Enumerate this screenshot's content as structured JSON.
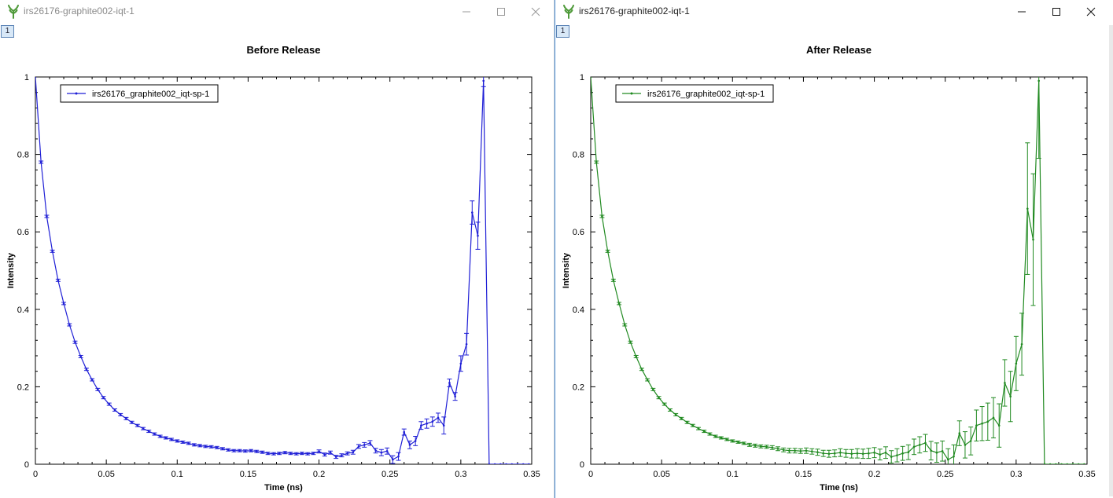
{
  "colors": {
    "left_series": "#1f1fd6",
    "right_series": "#218a21"
  },
  "windows": [
    {
      "title": "irs26176-graphite002-iqt-1",
      "plot_number": "1",
      "chart_data": {
        "type": "line",
        "title": "Before Release",
        "xlabel": "Time (ns)",
        "ylabel": "Intensity",
        "xlim": [
          0,
          0.35
        ],
        "ylim": [
          0,
          1
        ],
        "xticks": [
          "0",
          "0.05",
          "0.1",
          "0.15",
          "0.2",
          "0.25",
          "0.3",
          "0.35"
        ],
        "yticks": [
          "0",
          "0.2",
          "0.4",
          "0.6",
          "0.8",
          "1"
        ],
        "legend": "top-left",
        "grid": false,
        "series": [
          {
            "name": "irs26176_graphite002_iqt-sp-1",
            "color": "#1f1fd6",
            "x": [
              0,
              0.004,
              0.008,
              0.012,
              0.016,
              0.02,
              0.024,
              0.028,
              0.032,
              0.036,
              0.04,
              0.044,
              0.048,
              0.052,
              0.056,
              0.06,
              0.064,
              0.068,
              0.072,
              0.076,
              0.08,
              0.084,
              0.088,
              0.092,
              0.096,
              0.1,
              0.104,
              0.108,
              0.112,
              0.116,
              0.12,
              0.124,
              0.128,
              0.132,
              0.136,
              0.14,
              0.144,
              0.148,
              0.152,
              0.156,
              0.16,
              0.164,
              0.168,
              0.172,
              0.176,
              0.18,
              0.184,
              0.188,
              0.192,
              0.196,
              0.2,
              0.204,
              0.208,
              0.212,
              0.216,
              0.22,
              0.224,
              0.228,
              0.232,
              0.236,
              0.24,
              0.244,
              0.248,
              0.252,
              0.256,
              0.26,
              0.264,
              0.268,
              0.272,
              0.276,
              0.28,
              0.284,
              0.288,
              0.292,
              0.296,
              0.3,
              0.304,
              0.308,
              0.312,
              0.316,
              0.32,
              0.324,
              0.328,
              0.332,
              0.336,
              0.34,
              0.344,
              0.348
            ],
            "y": [
              1.0,
              0.78,
              0.64,
              0.55,
              0.475,
              0.415,
              0.36,
              0.315,
              0.278,
              0.245,
              0.218,
              0.193,
              0.172,
              0.155,
              0.14,
              0.128,
              0.118,
              0.108,
              0.1,
              0.092,
              0.085,
              0.078,
              0.072,
              0.068,
              0.064,
              0.06,
              0.057,
              0.054,
              0.05,
              0.048,
              0.046,
              0.045,
              0.043,
              0.04,
              0.037,
              0.035,
              0.035,
              0.034,
              0.035,
              0.033,
              0.031,
              0.028,
              0.027,
              0.028,
              0.03,
              0.028,
              0.027,
              0.028,
              0.027,
              0.028,
              0.033,
              0.025,
              0.03,
              0.019,
              0.023,
              0.028,
              0.031,
              0.046,
              0.05,
              0.055,
              0.035,
              0.03,
              0.034,
              0.012,
              0.02,
              0.083,
              0.05,
              0.06,
              0.1,
              0.105,
              0.11,
              0.12,
              0.1,
              0.21,
              0.175,
              0.26,
              0.31,
              0.65,
              0.59,
              0.99,
              0.0,
              0.0,
              0.0,
              0.0,
              0.0,
              0.0,
              0.0,
              0.0
            ],
            "err": [
              0,
              0.003,
              0.003,
              0.003,
              0.003,
              0.003,
              0.003,
              0.003,
              0.003,
              0.003,
              0.003,
              0.003,
              0.003,
              0.003,
              0.003,
              0.003,
              0.003,
              0.003,
              0.003,
              0.003,
              0.003,
              0.003,
              0.003,
              0.003,
              0.003,
              0.003,
              0.003,
              0.003,
              0.003,
              0.003,
              0.003,
              0.003,
              0.003,
              0.003,
              0.003,
              0.003,
              0.003,
              0.003,
              0.003,
              0.003,
              0.003,
              0.003,
              0.003,
              0.003,
              0.003,
              0.003,
              0.003,
              0.003,
              0.003,
              0.003,
              0.004,
              0.004,
              0.004,
              0.004,
              0.004,
              0.004,
              0.005,
              0.005,
              0.006,
              0.006,
              0.006,
              0.008,
              0.008,
              0.01,
              0.01,
              0.008,
              0.01,
              0.012,
              0.01,
              0.012,
              0.012,
              0.012,
              0.022,
              0.01,
              0.01,
              0.02,
              0.028,
              0.03,
              0.035,
              0.015,
              0,
              0,
              0,
              0,
              0,
              0,
              0,
              0
            ]
          }
        ]
      }
    },
    {
      "title": "irs26176-graphite002-iqt-1",
      "plot_number": "1",
      "chart_data": {
        "type": "line",
        "title": "After Release",
        "xlabel": "Time (ns)",
        "ylabel": "Intensity",
        "xlim": [
          0,
          0.35
        ],
        "ylim": [
          0,
          1
        ],
        "xticks": [
          "0",
          "0.05",
          "0.1",
          "0.15",
          "0.2",
          "0.25",
          "0.3",
          "0.35"
        ],
        "yticks": [
          "0",
          "0.2",
          "0.4",
          "0.6",
          "0.8",
          "1"
        ],
        "legend": "top-left",
        "grid": false,
        "series": [
          {
            "name": "irs26176_graphite002_iqt-sp-1",
            "color": "#218a21",
            "x": [
              0,
              0.004,
              0.008,
              0.012,
              0.016,
              0.02,
              0.024,
              0.028,
              0.032,
              0.036,
              0.04,
              0.044,
              0.048,
              0.052,
              0.056,
              0.06,
              0.064,
              0.068,
              0.072,
              0.076,
              0.08,
              0.084,
              0.088,
              0.092,
              0.096,
              0.1,
              0.104,
              0.108,
              0.112,
              0.116,
              0.12,
              0.124,
              0.128,
              0.132,
              0.136,
              0.14,
              0.144,
              0.148,
              0.152,
              0.156,
              0.16,
              0.164,
              0.168,
              0.172,
              0.176,
              0.18,
              0.184,
              0.188,
              0.192,
              0.196,
              0.2,
              0.204,
              0.208,
              0.212,
              0.216,
              0.22,
              0.224,
              0.228,
              0.232,
              0.236,
              0.24,
              0.244,
              0.248,
              0.252,
              0.256,
              0.26,
              0.264,
              0.268,
              0.272,
              0.276,
              0.28,
              0.284,
              0.288,
              0.292,
              0.296,
              0.3,
              0.304,
              0.308,
              0.312,
              0.316,
              0.32,
              0.324,
              0.328,
              0.332,
              0.336,
              0.34,
              0.344,
              0.348
            ],
            "y": [
              1.0,
              0.78,
              0.64,
              0.55,
              0.475,
              0.415,
              0.36,
              0.315,
              0.278,
              0.245,
              0.218,
              0.193,
              0.172,
              0.155,
              0.14,
              0.128,
              0.118,
              0.108,
              0.1,
              0.092,
              0.085,
              0.078,
              0.072,
              0.068,
              0.064,
              0.06,
              0.057,
              0.054,
              0.05,
              0.048,
              0.046,
              0.045,
              0.043,
              0.04,
              0.037,
              0.035,
              0.035,
              0.034,
              0.035,
              0.033,
              0.031,
              0.028,
              0.027,
              0.028,
              0.03,
              0.028,
              0.027,
              0.028,
              0.027,
              0.028,
              0.03,
              0.025,
              0.03,
              0.019,
              0.023,
              0.028,
              0.031,
              0.045,
              0.05,
              0.055,
              0.035,
              0.03,
              0.034,
              0.012,
              0.02,
              0.08,
              0.05,
              0.06,
              0.1,
              0.105,
              0.11,
              0.12,
              0.1,
              0.21,
              0.175,
              0.26,
              0.31,
              0.66,
              0.58,
              0.99,
              0.0,
              0.0,
              0.0,
              0.0,
              0.0,
              0.0,
              0.0,
              0.0
            ],
            "err": [
              0,
              0.003,
              0.003,
              0.003,
              0.003,
              0.003,
              0.003,
              0.003,
              0.003,
              0.003,
              0.003,
              0.003,
              0.003,
              0.003,
              0.003,
              0.003,
              0.003,
              0.003,
              0.003,
              0.003,
              0.003,
              0.003,
              0.003,
              0.003,
              0.003,
              0.003,
              0.003,
              0.003,
              0.004,
              0.004,
              0.004,
              0.004,
              0.005,
              0.005,
              0.005,
              0.006,
              0.006,
              0.006,
              0.007,
              0.007,
              0.008,
              0.008,
              0.009,
              0.009,
              0.01,
              0.01,
              0.011,
              0.012,
              0.012,
              0.013,
              0.013,
              0.014,
              0.015,
              0.016,
              0.017,
              0.018,
              0.019,
              0.02,
              0.021,
              0.022,
              0.024,
              0.025,
              0.026,
              0.028,
              0.03,
              0.032,
              0.034,
              0.036,
              0.04,
              0.044,
              0.048,
              0.052,
              0.056,
              0.06,
              0.065,
              0.07,
              0.08,
              0.17,
              0.17,
              0.2,
              0,
              0,
              0,
              0,
              0,
              0,
              0,
              0
            ]
          }
        ]
      }
    }
  ]
}
